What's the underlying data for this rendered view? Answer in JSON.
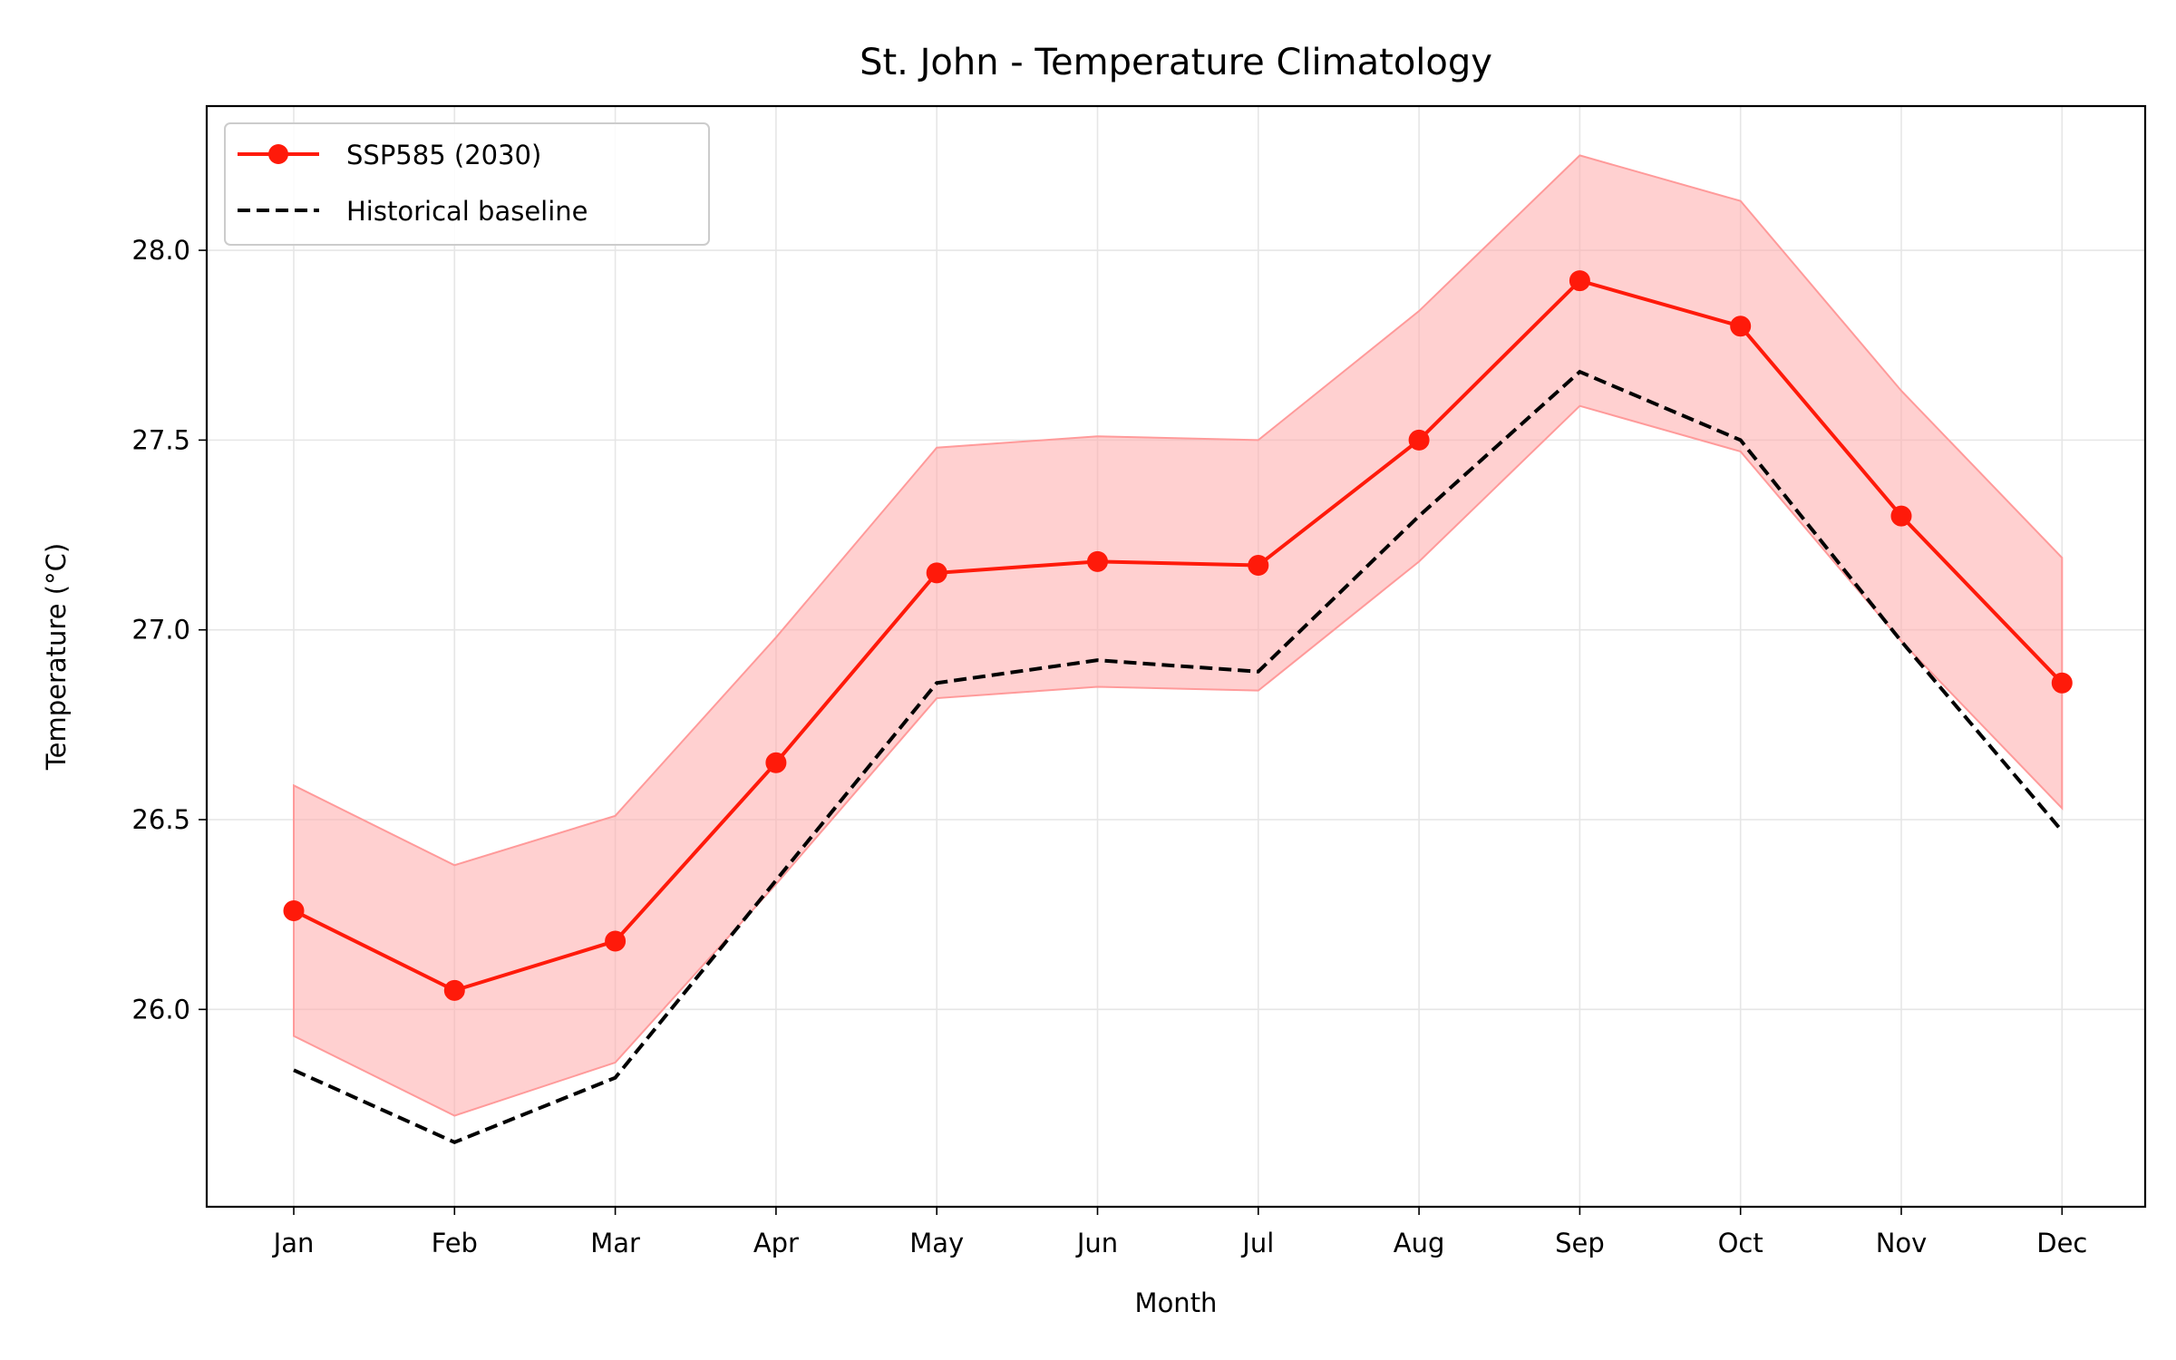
{
  "chart_data": {
    "type": "line",
    "title": "St. John - Temperature Climatology",
    "xlabel": "Month",
    "ylabel": "Temperature (°C)",
    "categories": [
      "Jan",
      "Feb",
      "Mar",
      "Apr",
      "May",
      "Jun",
      "Jul",
      "Aug",
      "Sep",
      "Oct",
      "Nov",
      "Dec"
    ],
    "ylim": [
      25.48,
      28.38
    ],
    "yticks": [
      "26.0",
      "26.5",
      "27.0",
      "27.5",
      "28.0"
    ],
    "grid": true,
    "legend_position": "top-left",
    "series": [
      {
        "name": "SSP585 (2030)",
        "style": "solid-with-markers",
        "color": "#ff1a0a",
        "values": [
          26.26,
          26.05,
          26.18,
          26.65,
          27.15,
          27.18,
          27.17,
          27.5,
          27.92,
          27.8,
          27.3,
          26.86
        ],
        "band_lower": [
          25.93,
          25.72,
          25.86,
          26.33,
          26.82,
          26.85,
          26.84,
          27.18,
          27.59,
          27.47,
          26.97,
          26.53
        ],
        "band_upper": [
          26.59,
          26.38,
          26.51,
          26.98,
          27.48,
          27.51,
          27.5,
          27.84,
          28.25,
          28.13,
          27.63,
          27.19
        ]
      },
      {
        "name": "Historical baseline",
        "style": "dashed",
        "color": "#000000",
        "values": [
          25.84,
          25.65,
          25.82,
          26.34,
          26.86,
          26.92,
          26.89,
          27.3,
          27.68,
          27.5,
          26.97,
          26.47
        ]
      }
    ],
    "band_color": "#ffaaaa"
  }
}
